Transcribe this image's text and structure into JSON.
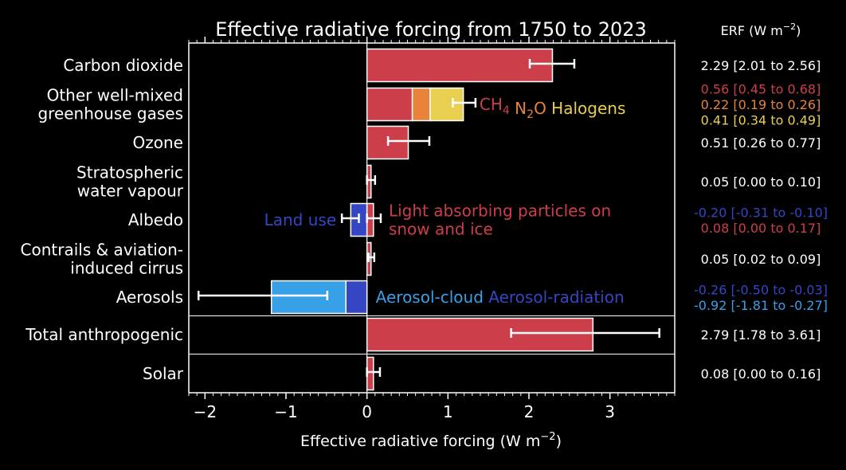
{
  "chart_data": {
    "type": "bar",
    "orientation": "horizontal",
    "title": "Effective radiative forcing from 1750 to 2023",
    "xlabel_prefix": "Effective radiative forcing (W m",
    "xlabel_sup": "−2",
    "xlabel_suffix": ")",
    "xlim": [
      -2.2,
      3.8
    ],
    "xticks": [
      -2,
      -1,
      0,
      1,
      2,
      3
    ],
    "xtick_labels": [
      "−2",
      "−1",
      "0",
      "1",
      "2",
      "3"
    ],
    "grid": false,
    "legend": "inline labels next to bars",
    "colors": {
      "background": "#000000",
      "foreground": "#ffffff",
      "red": "#cc3f4a",
      "orange": "#e8833a",
      "yellow": "#e8cf4f",
      "blue": "#3546c5",
      "lightblue": "#37a0e6"
    },
    "categories": [
      "Carbon dioxide",
      "Other well-mixed greenhouse gases",
      "Ozone",
      "Stratospheric water vapour",
      "Albedo",
      "Contrails & aviation-induced cirrus",
      "Aerosols",
      "Total anthropogenic",
      "Solar"
    ],
    "category_lines": [
      [
        "Carbon dioxide"
      ],
      [
        "Other well-mixed",
        "greenhouse gases"
      ],
      [
        "Ozone"
      ],
      [
        "Stratospheric",
        "water vapour"
      ],
      [
        "Albedo"
      ],
      [
        "Contrails & aviation-",
        "induced cirrus"
      ],
      [
        "Aerosols"
      ],
      [
        "Total anthropogenic"
      ],
      [
        "Solar"
      ]
    ],
    "bars": [
      {
        "category": "Carbon dioxide",
        "segments": [
          {
            "start": 0,
            "end": 2.29,
            "color": "red"
          }
        ],
        "errors": [
          {
            "low": 2.01,
            "high": 2.56,
            "at": 2.29
          }
        ]
      },
      {
        "category": "Other well-mixed greenhouse gases",
        "segments": [
          {
            "name": "CH4",
            "start": 0,
            "end": 0.56,
            "color": "red"
          },
          {
            "name": "N2O",
            "start": 0.56,
            "end": 0.78,
            "color": "orange"
          },
          {
            "name": "Halogens",
            "start": 0.78,
            "end": 1.19,
            "color": "yellow"
          }
        ],
        "errors": [
          {
            "low": 1.06,
            "high": 1.34,
            "at": 1.19
          }
        ]
      },
      {
        "category": "Ozone",
        "segments": [
          {
            "start": 0,
            "end": 0.51,
            "color": "red"
          }
        ],
        "errors": [
          {
            "low": 0.26,
            "high": 0.77,
            "at": 0.51
          }
        ]
      },
      {
        "category": "Stratospheric water vapour",
        "segments": [
          {
            "start": 0,
            "end": 0.05,
            "color": "red"
          }
        ],
        "errors": [
          {
            "low": 0.0,
            "high": 0.1,
            "at": 0.05
          }
        ]
      },
      {
        "category": "Albedo",
        "segments": [
          {
            "name": "Land use",
            "start": -0.2,
            "end": 0,
            "color": "blue"
          },
          {
            "name": "Light absorbing particles on snow and ice",
            "start": 0,
            "end": 0.08,
            "color": "red"
          }
        ],
        "errors": [
          {
            "low": -0.31,
            "high": -0.1,
            "at": -0.2
          },
          {
            "low": 0.0,
            "high": 0.17,
            "at": 0.08
          }
        ]
      },
      {
        "category": "Contrails & aviation-induced cirrus",
        "segments": [
          {
            "start": 0,
            "end": 0.05,
            "color": "red"
          }
        ],
        "errors": [
          {
            "low": 0.02,
            "high": 0.09,
            "at": 0.05
          }
        ]
      },
      {
        "category": "Aerosols",
        "segments": [
          {
            "name": "Aerosol-radiation",
            "start": -0.26,
            "end": 0,
            "color": "blue"
          },
          {
            "name": "Aerosol-cloud",
            "start": -1.18,
            "end": -0.26,
            "color": "lightblue"
          }
        ],
        "errors": [
          {
            "low": -2.08,
            "high": -0.49,
            "at": -1.18
          }
        ]
      },
      {
        "category": "Total anthropogenic",
        "segments": [
          {
            "start": 0,
            "end": 2.79,
            "color": "red"
          }
        ],
        "errors": [
          {
            "low": 1.78,
            "high": 3.61,
            "at": 2.79
          }
        ]
      },
      {
        "category": "Solar",
        "segments": [
          {
            "start": 0,
            "end": 0.08,
            "color": "red"
          }
        ],
        "errors": [
          {
            "low": 0.0,
            "high": 0.16,
            "at": 0.08
          }
        ]
      }
    ],
    "inline_labels": [
      {
        "category": "Other well-mixed greenhouse gases",
        "parts": [
          {
            "text": "CH",
            "sub": "4",
            "color": "red"
          },
          {
            "text": " N",
            "sub": "2",
            "tail": "O",
            "color": "orange"
          },
          {
            "text": " Halogens",
            "color": "yellow"
          }
        ]
      },
      {
        "category": "Albedo",
        "side": "left",
        "lines": [
          "Land use"
        ],
        "color": "blue"
      },
      {
        "category": "Albedo",
        "side": "right",
        "lines": [
          "Light absorbing particles on",
          "snow and ice"
        ],
        "color": "red"
      },
      {
        "category": "Aerosols",
        "parts": [
          {
            "text": "Aerosol-cloud",
            "color": "lightblue"
          },
          {
            "text": " Aerosol-radiation",
            "color": "blue"
          }
        ]
      }
    ],
    "erf_header_prefix": "ERF (W m",
    "erf_header_sup": "−2",
    "erf_header_suffix": ")",
    "erf_values": [
      {
        "category": "Carbon dioxide",
        "lines": [
          {
            "text": "2.29 [2.01 to 2.56]",
            "color": "foreground"
          }
        ]
      },
      {
        "category": "Other well-mixed greenhouse gases",
        "lines": [
          {
            "text": "0.56 [0.45 to 0.68]",
            "color": "red"
          },
          {
            "text": "0.22 [0.19 to 0.26]",
            "color": "orange"
          },
          {
            "text": "0.41 [0.34 to 0.49]",
            "color": "yellow"
          }
        ]
      },
      {
        "category": "Ozone",
        "lines": [
          {
            "text": "0.51 [0.26 to 0.77]",
            "color": "foreground"
          }
        ]
      },
      {
        "category": "Stratospheric water vapour",
        "lines": [
          {
            "text": "0.05 [0.00 to 0.10]",
            "color": "foreground"
          }
        ]
      },
      {
        "category": "Albedo",
        "lines": [
          {
            "text": "-0.20 [-0.31 to -0.10]",
            "color": "blue"
          },
          {
            "text": "0.08 [0.00 to 0.17]",
            "color": "red"
          }
        ]
      },
      {
        "category": "Contrails & aviation-induced cirrus",
        "lines": [
          {
            "text": "0.05 [0.02 to 0.09]",
            "color": "foreground"
          }
        ]
      },
      {
        "category": "Aerosols",
        "lines": [
          {
            "text": "-0.26 [-0.50 to -0.03]",
            "color": "blue"
          },
          {
            "text": "-0.92 [-1.81 to -0.27]",
            "color": "lightblue"
          }
        ]
      },
      {
        "category": "Total anthropogenic",
        "lines": [
          {
            "text": "2.79 [1.78 to 3.61]",
            "color": "foreground"
          }
        ]
      },
      {
        "category": "Solar",
        "lines": [
          {
            "text": "0.08 [0.00 to 0.16]",
            "color": "foreground"
          }
        ]
      }
    ]
  }
}
